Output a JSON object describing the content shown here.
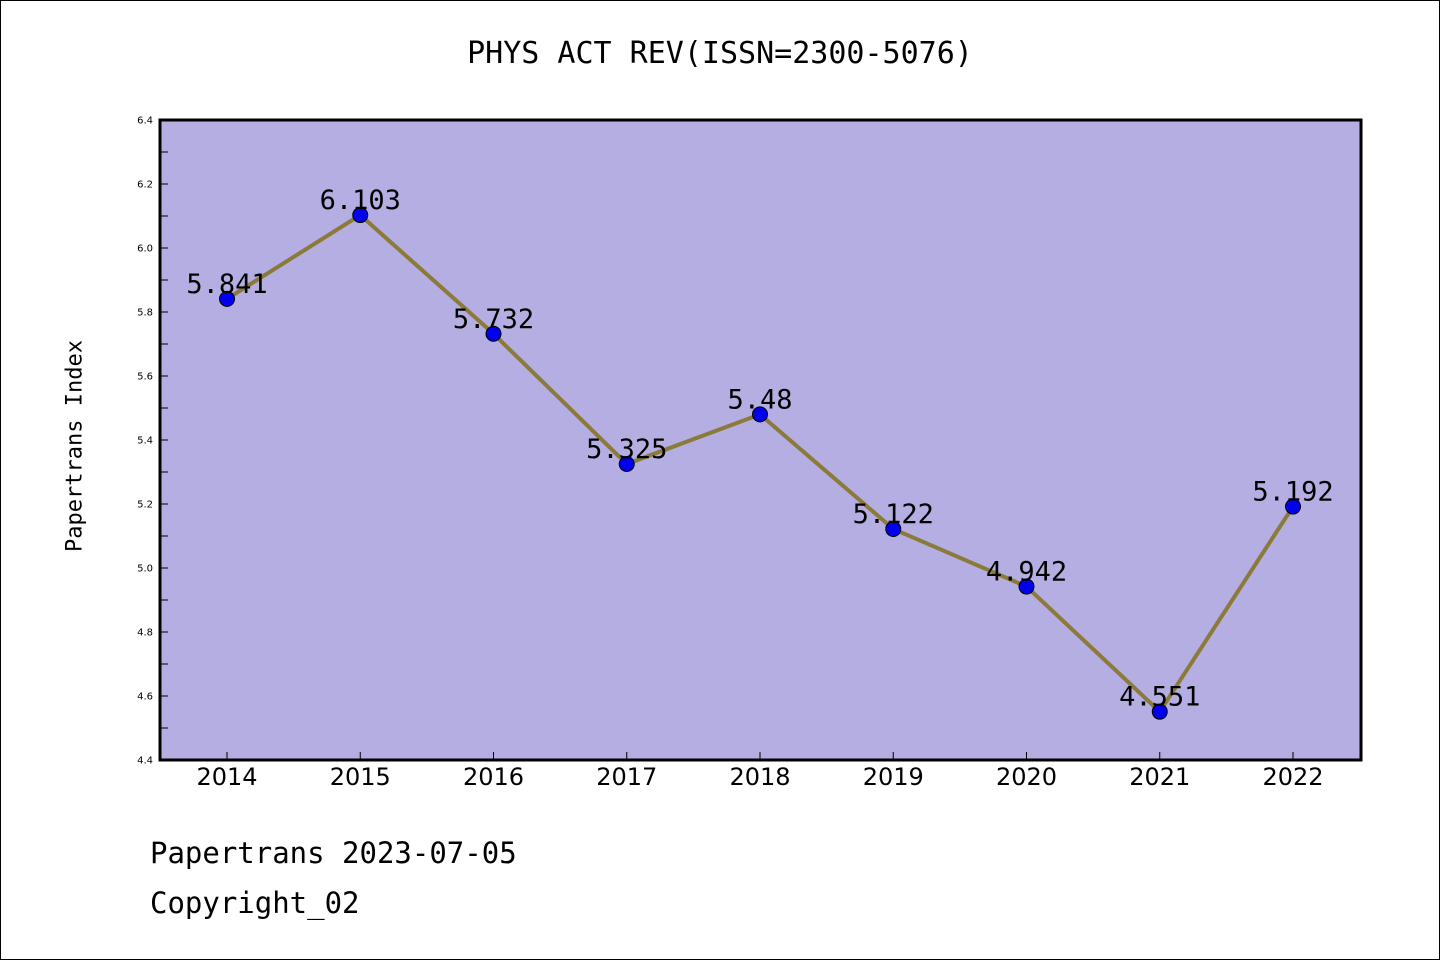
{
  "title": "PHYS ACT REV(ISSN=2300-5076)",
  "footer": {
    "line1": "Papertrans 2023-07-05",
    "line2": "Copyright_02"
  },
  "colors": {
    "plot_bg": "#b4aee2",
    "line": "#8b7a3a",
    "marker": "#0000ee"
  },
  "chart_data": {
    "type": "line",
    "title": "PHYS ACT REV(ISSN=2300-5076)",
    "xlabel": "",
    "ylabel": "Papertrans Index",
    "categories": [
      "2014",
      "2015",
      "2016",
      "2017",
      "2018",
      "2019",
      "2020",
      "2021",
      "2022"
    ],
    "values": [
      5.841,
      6.103,
      5.732,
      5.325,
      5.48,
      5.122,
      4.942,
      4.551,
      5.192
    ],
    "labels": [
      "5.841",
      "6.103",
      "5.732",
      "5.325",
      "5.48",
      "5.122",
      "4.942",
      "4.551",
      "5.192"
    ],
    "ylim": [
      4.4,
      6.4
    ],
    "yticks": [
      "4.4",
      "4.6",
      "4.8",
      "5.0",
      "5.2",
      "5.4",
      "5.6",
      "5.8",
      "6.0",
      "6.2",
      "6.4"
    ],
    "grid": false,
    "legend": "none"
  }
}
